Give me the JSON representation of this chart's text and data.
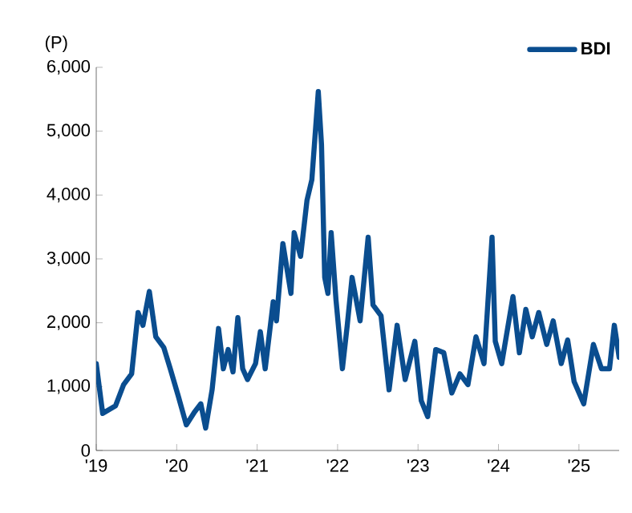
{
  "chart_data": {
    "type": "line",
    "ylabel": "(P)",
    "legend": "top right",
    "grid": false,
    "line_style": "solid",
    "marker": "none",
    "xlim": [
      2019,
      2025.5
    ],
    "ylim": [
      0,
      6000
    ],
    "xticks": [
      {
        "value": 2019,
        "label": "'19"
      },
      {
        "value": 2020,
        "label": "'20"
      },
      {
        "value": 2021,
        "label": "'21"
      },
      {
        "value": 2022,
        "label": "'22"
      },
      {
        "value": 2023,
        "label": "'23"
      },
      {
        "value": 2024,
        "label": "'24"
      },
      {
        "value": 2025,
        "label": "'25"
      }
    ],
    "yticks": [
      {
        "value": 0,
        "label": "0"
      },
      {
        "value": 1000,
        "label": "1,000"
      },
      {
        "value": 2000,
        "label": "2,000"
      },
      {
        "value": 3000,
        "label": "3,000"
      },
      {
        "value": 4000,
        "label": "4,000"
      },
      {
        "value": 5000,
        "label": "5,000"
      },
      {
        "value": 6000,
        "label": "6,000"
      }
    ],
    "series": [
      {
        "name": "BDI",
        "color": "#0a4d8f",
        "x": [
          2019.0,
          2019.08,
          2019.24,
          2019.34,
          2019.44,
          2019.52,
          2019.58,
          2019.66,
          2019.74,
          2019.84,
          2019.92,
          2020.02,
          2020.12,
          2020.22,
          2020.3,
          2020.36,
          2020.44,
          2020.52,
          2020.58,
          2020.64,
          2020.7,
          2020.76,
          2020.82,
          2020.88,
          2020.98,
          2021.04,
          2021.1,
          2021.2,
          2021.24,
          2021.32,
          2021.42,
          2021.46,
          2021.54,
          2021.62,
          2021.68,
          2021.76,
          2021.8,
          2021.84,
          2021.88,
          2021.92,
          2021.98,
          2022.06,
          2022.12,
          2022.18,
          2022.28,
          2022.38,
          2022.44,
          2022.54,
          2022.64,
          2022.74,
          2022.84,
          2022.96,
          2023.04,
          2023.12,
          2023.22,
          2023.32,
          2023.42,
          2023.52,
          2023.62,
          2023.72,
          2023.82,
          2023.92,
          2023.96,
          2024.04,
          2024.18,
          2024.26,
          2024.34,
          2024.42,
          2024.5,
          2024.6,
          2024.68,
          2024.78,
          2024.86,
          2024.94,
          2025.06,
          2025.18,
          2025.28,
          2025.38,
          2025.44,
          2025.5
        ],
        "values": [
          1360,
          580,
          700,
          1030,
          1200,
          2160,
          1960,
          2490,
          1780,
          1610,
          1280,
          850,
          400,
          600,
          730,
          350,
          950,
          1910,
          1280,
          1580,
          1230,
          2080,
          1280,
          1110,
          1360,
          1860,
          1280,
          2330,
          2030,
          3240,
          2460,
          3410,
          3040,
          3920,
          4240,
          5620,
          4790,
          2710,
          2460,
          3410,
          2360,
          1280,
          1960,
          2710,
          2030,
          3340,
          2280,
          2110,
          950,
          1960,
          1110,
          1710,
          780,
          530,
          1580,
          1530,
          900,
          1200,
          1030,
          1780,
          1360,
          3340,
          1710,
          1360,
          2410,
          1530,
          2210,
          1780,
          2160,
          1660,
          2030,
          1360,
          1730,
          1080,
          730,
          1660,
          1280,
          1280,
          1960,
          1460
        ]
      }
    ]
  }
}
